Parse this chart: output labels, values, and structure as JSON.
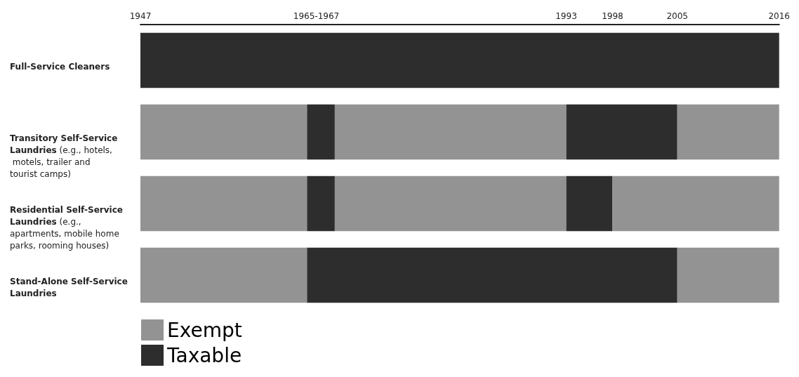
{
  "chart_data": {
    "type": "bar",
    "orientation": "horizontal",
    "categories": [
      "Full-Service Cleaners",
      "Transitory Self-Service Laundries (e.g., hotels, motels, trailer and tourist camps)",
      "Residential Self-Service Laundries (e.g., apartments, mobile home parks, rooming houses)",
      "Stand-Alone Self-Service Laundries"
    ],
    "xlim": [
      1947,
      2016
    ],
    "xticks": [
      1947,
      {
        "value": 1966,
        "label": "1965-1967"
      },
      1993,
      1998,
      2005,
      2016
    ],
    "grid": false,
    "legend": "bottom left",
    "series": [
      {
        "name": "Exempt",
        "color": "#939393",
        "base": [
          null,
          1947,
          1947,
          1947
        ],
        "values": [
          null,
          18,
          18,
          18
        ]
      },
      {
        "name": "Taxable",
        "color": "#2d2d2d",
        "base": [
          1947,
          1965,
          1965,
          1965
        ],
        "values": [
          69,
          3,
          3,
          40
        ]
      },
      {
        "color": "#939393",
        "base": [
          null,
          1968,
          1968,
          null
        ],
        "values": [
          null,
          25,
          25,
          null
        ]
      },
      {
        "color": "#2d2d2d",
        "base": [
          null,
          1993,
          1993,
          null
        ],
        "values": [
          null,
          12,
          5,
          null
        ]
      },
      {
        "color": "#939393",
        "base": [
          null,
          2005,
          1998,
          2005
        ],
        "values": [
          null,
          11,
          18,
          11
        ]
      }
    ]
  }
}
